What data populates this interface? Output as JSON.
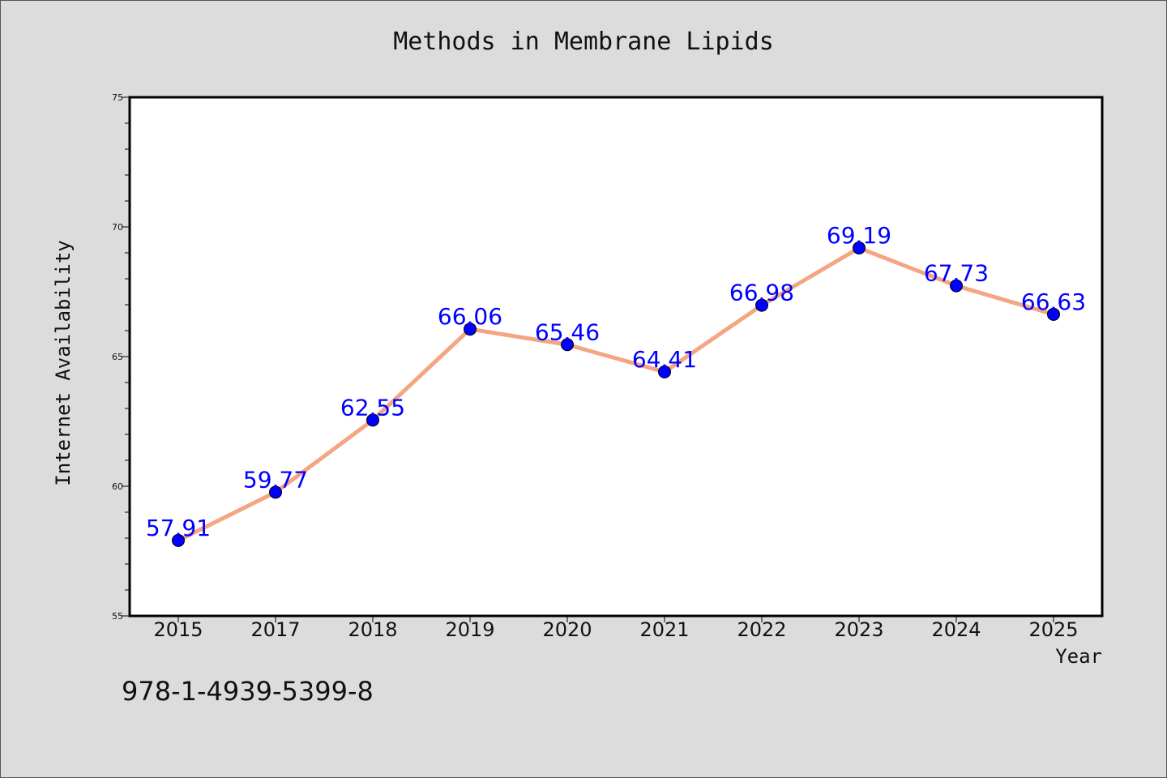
{
  "isbn_text": "978-1-4939-5399-8",
  "chart_data": {
    "type": "line",
    "title": "Methods in Membrane Lipids",
    "xlabel": "Year",
    "ylabel": "Internet Availability",
    "categories": [
      "2015",
      "2017",
      "2018",
      "2019",
      "2020",
      "2021",
      "2022",
      "2023",
      "2024",
      "2025"
    ],
    "series": [
      {
        "values": [
          57.91,
          59.77,
          62.55,
          66.06,
          65.46,
          64.41,
          66.98,
          69.19,
          67.73,
          66.63
        ],
        "line_color": "#f4a582",
        "marker_color": "#0000ff"
      }
    ],
    "data_labels": [
      "57.91",
      "59.77",
      "62.55",
      "66.06",
      "65.46",
      "64.41",
      "66.98",
      "69.19",
      "67.73",
      "66.63"
    ],
    "data_label_color": "#0000ff",
    "ylim": [
      55,
      75
    ],
    "yticks": [
      "55",
      "60",
      "65",
      "70",
      "75"
    ],
    "grid": false,
    "legend": "none"
  }
}
